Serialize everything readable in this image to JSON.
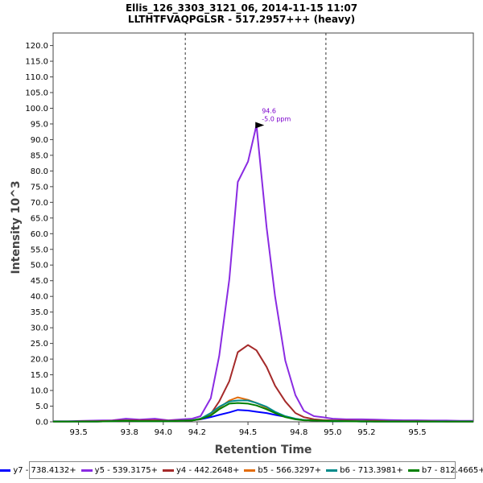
{
  "chart_data": {
    "type": "line",
    "title": "Ellis_126_3303_3121_06, 2014-11-15 11:07",
    "subtitle": "LLTHTFVAQPGLSR - 517.2957+++ (heavy)",
    "xlabel": "Retention Time",
    "ylabel": "Intensity 10^3",
    "xlim": [
      93.35,
      95.83
    ],
    "ylim": [
      0,
      124
    ],
    "x_ticks": [
      93.5,
      93.8,
      94.0,
      94.2,
      94.5,
      94.8,
      95.0,
      95.2,
      95.5
    ],
    "x_tick_labels": [
      "93.5",
      "93.8",
      "94.0",
      "94.2",
      "94.5",
      "94.8",
      "95.0",
      "95.2",
      "95.5"
    ],
    "y_ticks": [
      0.0,
      5.0,
      10.0,
      15.0,
      20.0,
      25.0,
      30.0,
      35.0,
      40.0,
      45.0,
      50.0,
      55.0,
      60.0,
      65.0,
      70.0,
      75.0,
      80.0,
      85.0,
      90.0,
      95.0,
      100.0,
      105.0,
      110.0,
      115.0,
      120.0
    ],
    "y_tick_labels": [
      "0.0",
      "5.0",
      "10.0",
      "15.0",
      "20.0",
      "25.0",
      "30.0",
      "35.0",
      "40.0",
      "45.0",
      "50.0",
      "55.0",
      "60.0",
      "65.0",
      "70.0",
      "75.0",
      "80.0",
      "85.0",
      "90.0",
      "95.0",
      "100.0",
      "105.0",
      "110.0",
      "115.0",
      "120.0"
    ],
    "boundaries": [
      94.13,
      94.96
    ],
    "annotation": {
      "x": 94.61,
      "y": 94.6,
      "lines": [
        "94.6",
        "-5.0 ppm"
      ],
      "color": "#7b00cc"
    },
    "x": [
      93.35,
      93.44,
      93.53,
      93.61,
      93.7,
      93.78,
      93.86,
      93.95,
      94.03,
      94.11,
      94.17,
      94.22,
      94.28,
      94.33,
      94.39,
      94.44,
      94.5,
      94.55,
      94.61,
      94.66,
      94.72,
      94.78,
      94.83,
      94.89,
      94.94,
      95.0,
      95.08,
      95.17,
      95.25,
      95.33,
      95.42,
      95.5,
      95.58,
      95.67,
      95.75,
      95.83
    ],
    "series": [
      {
        "name": "y7 - 738.4132+",
        "color": "#0000ff",
        "values": [
          0.1,
          0.1,
          0.1,
          0.1,
          0.2,
          0.3,
          0.2,
          0.2,
          0.2,
          0.3,
          0.5,
          0.8,
          1.5,
          2.2,
          3.0,
          3.8,
          3.6,
          3.2,
          2.8,
          2.2,
          1.6,
          0.9,
          0.6,
          0.4,
          0.3,
          0.2,
          0.2,
          0.1,
          0.1,
          0.1,
          0.1,
          0.1,
          0.1,
          0.1,
          0.1,
          0.1
        ]
      },
      {
        "name": "y5 - 539.3175+",
        "color": "#8a2be2",
        "values": [
          0.2,
          0.2,
          0.3,
          0.4,
          0.5,
          1.0,
          0.7,
          1.0,
          0.5,
          0.8,
          1.0,
          1.8,
          7.5,
          21.0,
          45.5,
          76.5,
          83.0,
          94.6,
          62.0,
          40.0,
          19.5,
          8.5,
          3.5,
          1.8,
          1.5,
          1.0,
          0.8,
          0.8,
          0.7,
          0.6,
          0.5,
          0.5,
          0.4,
          0.4,
          0.3,
          0.3
        ]
      },
      {
        "name": "y4 - 442.2648+",
        "color": "#a52a2a",
        "values": [
          0.1,
          0.1,
          0.2,
          0.2,
          0.3,
          0.5,
          0.4,
          0.5,
          0.3,
          0.4,
          0.5,
          0.8,
          2.5,
          6.5,
          13.0,
          22.2,
          24.5,
          22.8,
          17.5,
          11.5,
          6.5,
          2.8,
          1.5,
          0.8,
          0.6,
          0.5,
          0.4,
          0.3,
          0.3,
          0.2,
          0.2,
          0.2,
          0.2,
          0.1,
          0.1,
          0.1
        ]
      },
      {
        "name": "b5 - 566.3297+",
        "color": "#e36c0a",
        "values": [
          0.1,
          0.1,
          0.1,
          0.1,
          0.2,
          0.3,
          0.2,
          0.2,
          0.2,
          0.3,
          0.5,
          1.0,
          2.5,
          4.5,
          6.8,
          7.8,
          7.0,
          6.0,
          4.5,
          2.8,
          1.6,
          0.9,
          0.6,
          0.4,
          0.3,
          0.3,
          0.2,
          0.2,
          0.1,
          0.1,
          0.1,
          0.1,
          0.1,
          0.1,
          0.1,
          0.1
        ]
      },
      {
        "name": "b6 - 713.3981+",
        "color": "#008b8b",
        "values": [
          0.1,
          0.1,
          0.1,
          0.1,
          0.2,
          0.3,
          0.2,
          0.2,
          0.2,
          0.3,
          0.5,
          1.0,
          2.8,
          4.8,
          6.5,
          6.8,
          6.8,
          6.0,
          4.8,
          3.2,
          1.8,
          1.0,
          0.6,
          0.4,
          0.3,
          0.3,
          0.2,
          0.2,
          0.1,
          0.1,
          0.1,
          0.1,
          0.1,
          0.1,
          0.1,
          0.1
        ]
      },
      {
        "name": "b7 - 812.4665+",
        "color": "#008000",
        "values": [
          0.1,
          0.1,
          0.1,
          0.1,
          0.2,
          0.3,
          0.2,
          0.2,
          0.2,
          0.3,
          0.4,
          0.9,
          2.0,
          4.0,
          5.8,
          6.0,
          5.8,
          5.2,
          4.0,
          2.8,
          1.5,
          0.8,
          0.5,
          0.4,
          0.3,
          0.2,
          0.2,
          0.1,
          0.1,
          0.1,
          0.1,
          0.1,
          0.1,
          0.1,
          0.1,
          0.1
        ]
      }
    ]
  }
}
